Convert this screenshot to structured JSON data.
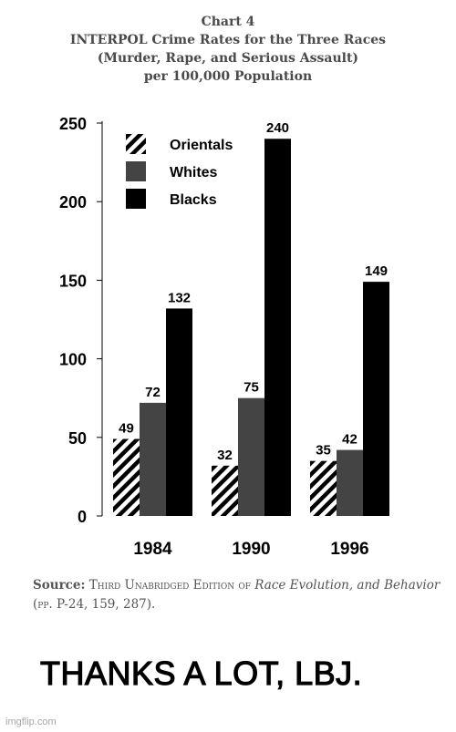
{
  "header": {
    "line1": "Chart 4",
    "line2": "INTERPOL Crime Rates for the Three Races",
    "line3": "(Murder, Rape, and Serious Assault)",
    "line4": "per 100,000 Population"
  },
  "chart_data": {
    "type": "bar",
    "categories": [
      "1984",
      "1990",
      "1996"
    ],
    "series": [
      {
        "name": "Orientals",
        "values": [
          49,
          32,
          35
        ],
        "fill": "hatch"
      },
      {
        "name": "Whites",
        "values": [
          72,
          75,
          42
        ],
        "fill": "#444444"
      },
      {
        "name": "Blacks",
        "values": [
          132,
          240,
          149
        ],
        "fill": "#000000"
      }
    ],
    "ylim": [
      0,
      250
    ],
    "yticks": [
      "0",
      "50",
      "100",
      "150",
      "200",
      "250"
    ],
    "grid": false,
    "legend": "top-left"
  },
  "source": {
    "label": "Source:",
    "text_a": "Third Unabridged Edition of ",
    "title": "Race Evolution, and Behavior",
    "text_b": " (pp. P-24, 159, 287)."
  },
  "caption": "THANKS A LOT, LBJ.",
  "watermark": "imgflip.com"
}
